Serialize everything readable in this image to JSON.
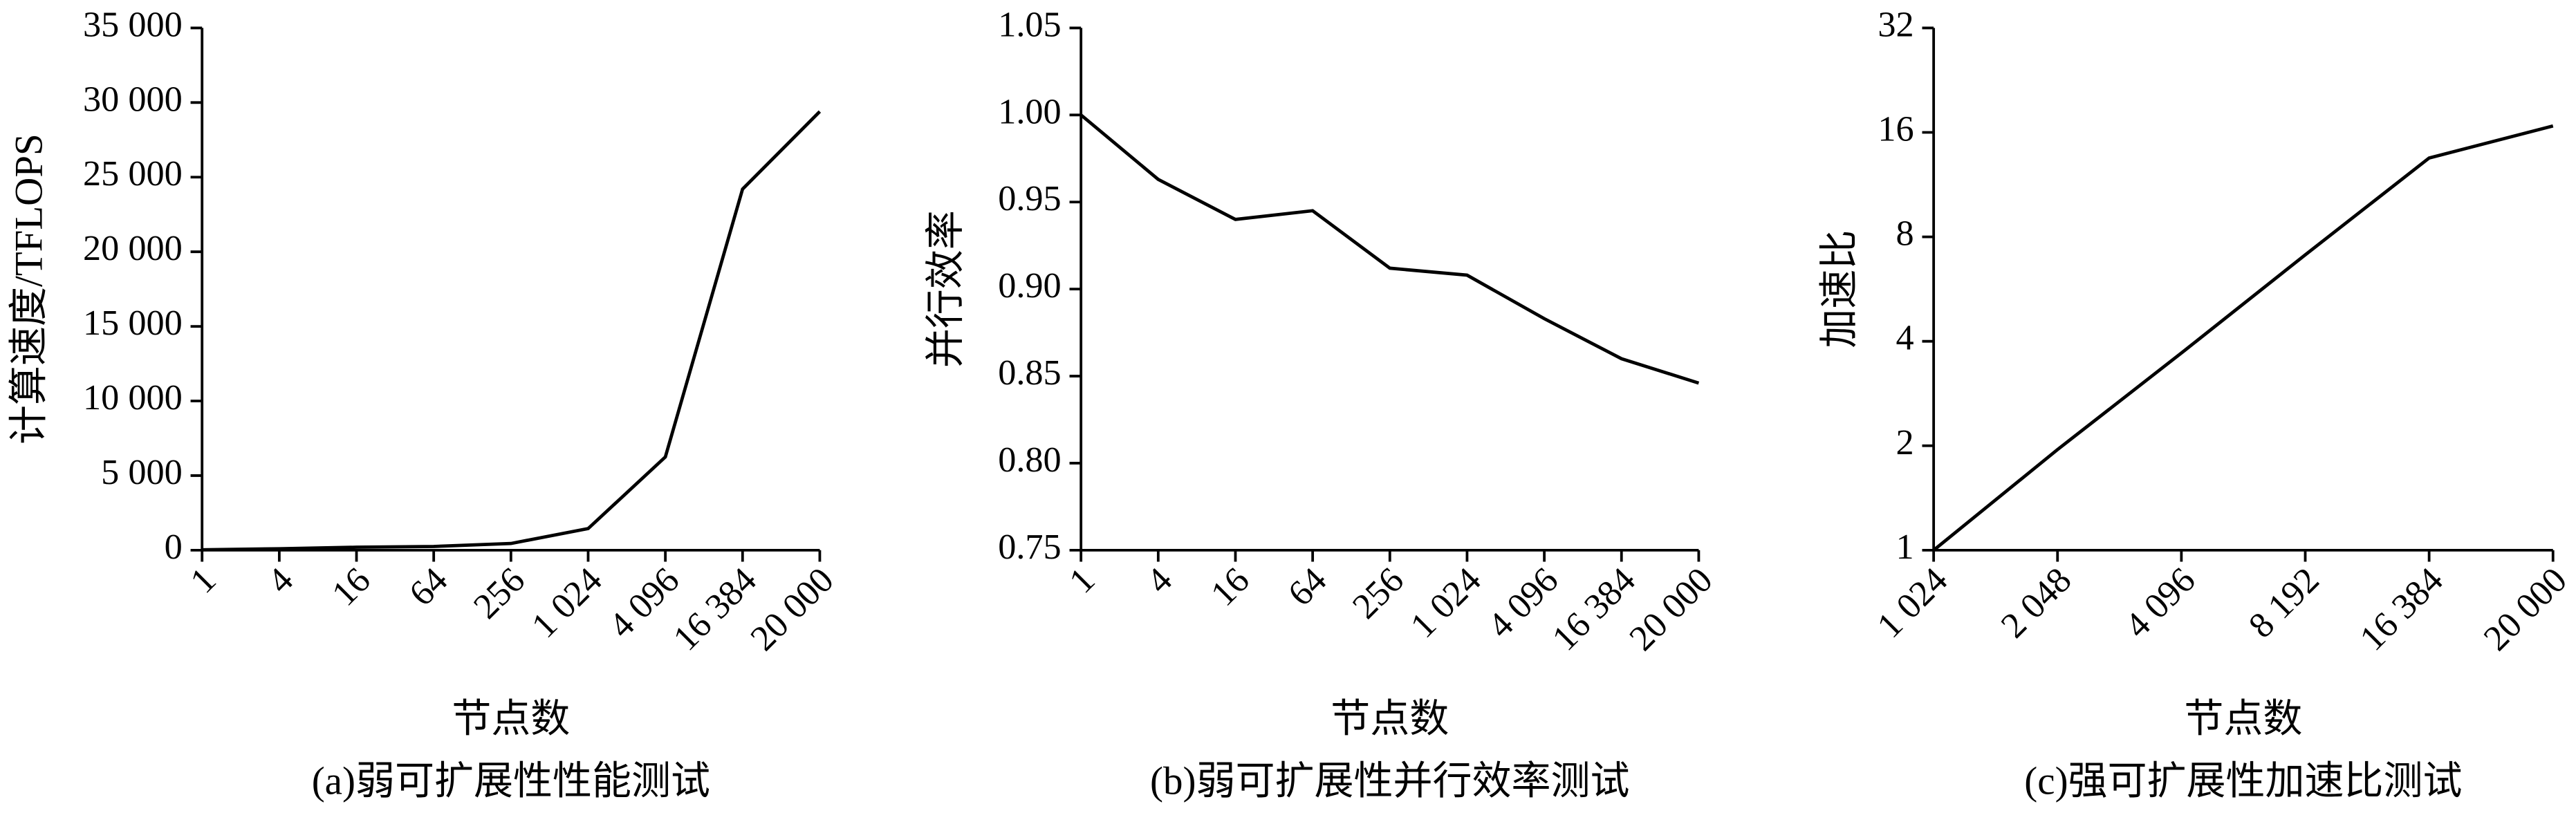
{
  "chart_data": [
    {
      "type": "line",
      "caption": "(a)弱可扩展性性能测试",
      "xlabel": "节点数",
      "ylabel": "计算速度/TFLOPS",
      "categories": [
        "1",
        "4",
        "16",
        "64",
        "256",
        "1 024",
        "4 096",
        "16 384",
        "20 000"
      ],
      "values": [
        30,
        100,
        200,
        250,
        450,
        1450,
        6250,
        24200,
        29400
      ],
      "color": "#000000",
      "ylim": [
        0,
        35000
      ],
      "yticks": [
        0,
        {
          "value": 5000,
          "label": "5 000"
        },
        {
          "value": 10000,
          "label": "10 000"
        },
        {
          "value": 15000,
          "label": "15 000"
        },
        {
          "value": 20000,
          "label": "20 000"
        },
        {
          "value": 25000,
          "label": "25 000"
        },
        {
          "value": 30000,
          "label": "30 000"
        },
        {
          "value": 35000,
          "label": "35 000"
        }
      ]
    },
    {
      "type": "line",
      "caption": "(b)弱可扩展性并行效率测试",
      "xlabel": "节点数",
      "ylabel": "并行效率",
      "categories": [
        "1",
        "4",
        "16",
        "64",
        "256",
        "1 024",
        "4 096",
        "16 384",
        "20 000"
      ],
      "values": [
        1.0,
        0.963,
        0.94,
        0.945,
        0.912,
        0.908,
        0.883,
        0.86,
        0.846
      ],
      "color": "#000000",
      "ylim": [
        0.75,
        1.05
      ],
      "yticks": [
        0.75,
        {
          "value": 0.8,
          "label": "0.80"
        },
        0.85,
        {
          "value": 0.9,
          "label": "0.90"
        },
        0.95,
        {
          "value": 1.0,
          "label": "1.00"
        },
        1.05
      ]
    },
    {
      "type": "line",
      "caption": "(c)强可扩展性加速比测试",
      "xlabel": "节点数",
      "ylabel": "加速比",
      "categories": [
        "1 024",
        "2 048",
        "4 096",
        "8 192",
        "16 384",
        "20 000"
      ],
      "values": [
        1,
        1.95,
        3.7,
        7.1,
        13.5,
        16.7
      ],
      "color": "#000000",
      "yscale": "log",
      "ylim": [
        1,
        32
      ],
      "yticks": [
        1,
        2,
        4,
        8,
        16,
        32
      ]
    }
  ]
}
